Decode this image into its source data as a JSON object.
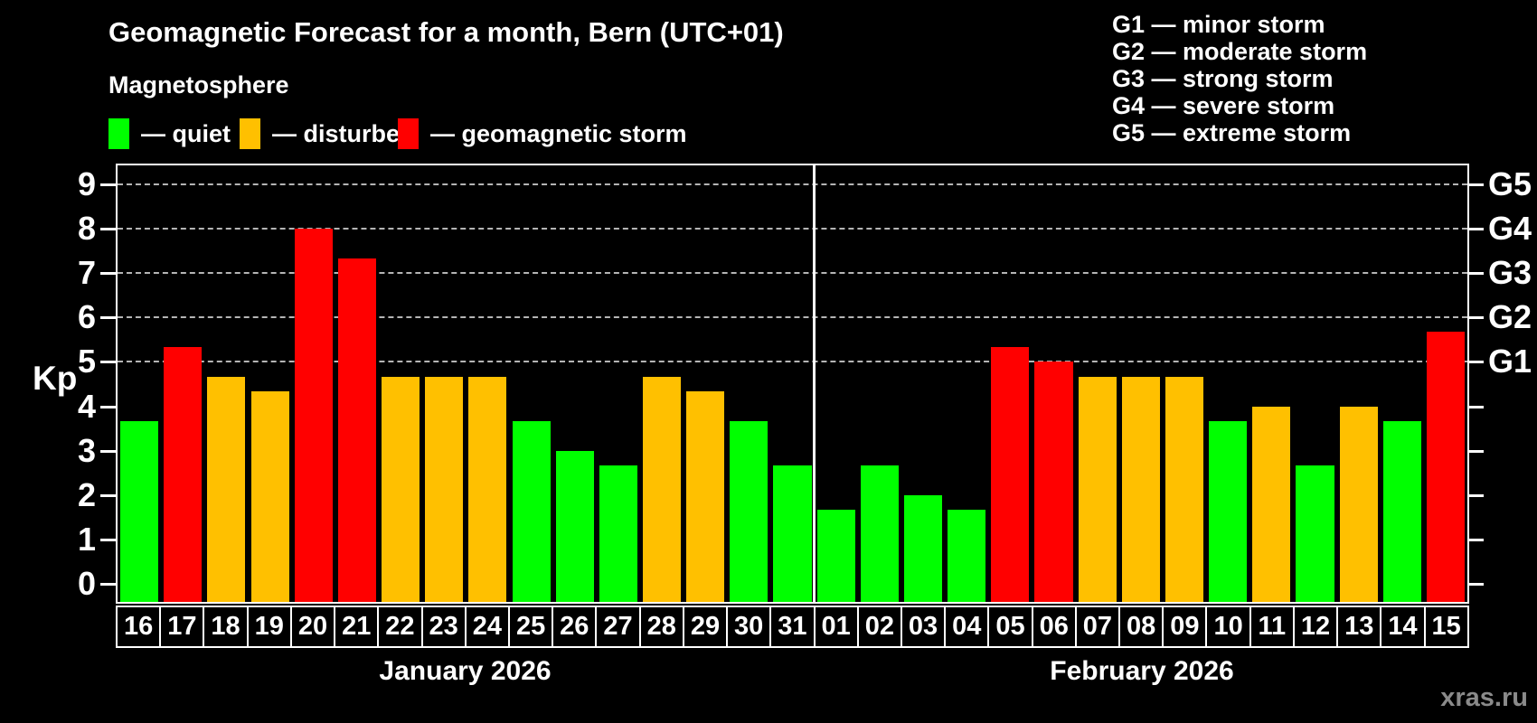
{
  "title": "Geomagnetic Forecast for a month, Bern (UTC+01)",
  "subtitle": "Magnetosphere",
  "watermark": "xras.ru",
  "colors": {
    "quiet": "#00ff00",
    "disturbed": "#ffc000",
    "storm": "#ff0000",
    "background": "#000000",
    "grid": "#b5b5b5",
    "axis": "#ffffff",
    "watermark": "#8a8a8a"
  },
  "legend": [
    {
      "key": "quiet",
      "label": "— quiet",
      "color": "#00ff00"
    },
    {
      "key": "disturbed",
      "label": "— disturbed",
      "color": "#ffc000"
    },
    {
      "key": "storm",
      "label": "— geomagnetic storm",
      "color": "#ff0000"
    }
  ],
  "g_legend": [
    "G1 — minor storm",
    "G2 — moderate storm",
    "G3 — strong storm",
    "G4 — severe storm",
    "G5 — extreme storm"
  ],
  "chart_data": {
    "type": "bar",
    "title": "Geomagnetic Forecast for a month, Bern (UTC+01)",
    "subtitle": "Magnetosphere",
    "ylabel": "Kp",
    "ylim": [
      -0.4,
      9.42
    ],
    "grid_on": true,
    "grid_levels": [
      5,
      6,
      7,
      8,
      9
    ],
    "y_ticks": [
      "0",
      "1",
      "2",
      "3",
      "4",
      "5",
      "6",
      "7",
      "8",
      "9"
    ],
    "g_ticks": [
      {
        "kp": 5,
        "label": "G1"
      },
      {
        "kp": 6,
        "label": "G2"
      },
      {
        "kp": 7,
        "label": "G3"
      },
      {
        "kp": 8,
        "label": "G4"
      },
      {
        "kp": 9,
        "label": "G5"
      }
    ],
    "months": [
      {
        "label": "January 2026",
        "days": [
          {
            "date": "16",
            "kp": 3.67,
            "level": "quiet"
          },
          {
            "date": "17",
            "kp": 5.33,
            "level": "storm"
          },
          {
            "date": "18",
            "kp": 4.67,
            "level": "disturbed"
          },
          {
            "date": "19",
            "kp": 4.33,
            "level": "disturbed"
          },
          {
            "date": "20",
            "kp": 8.0,
            "level": "storm"
          },
          {
            "date": "21",
            "kp": 7.33,
            "level": "storm"
          },
          {
            "date": "22",
            "kp": 4.67,
            "level": "disturbed"
          },
          {
            "date": "23",
            "kp": 4.67,
            "level": "disturbed"
          },
          {
            "date": "24",
            "kp": 4.67,
            "level": "disturbed"
          },
          {
            "date": "25",
            "kp": 3.67,
            "level": "quiet"
          },
          {
            "date": "26",
            "kp": 3.0,
            "level": "quiet"
          },
          {
            "date": "27",
            "kp": 2.67,
            "level": "quiet"
          },
          {
            "date": "28",
            "kp": 4.67,
            "level": "disturbed"
          },
          {
            "date": "29",
            "kp": 4.33,
            "level": "disturbed"
          },
          {
            "date": "30",
            "kp": 3.67,
            "level": "quiet"
          },
          {
            "date": "31",
            "kp": 2.67,
            "level": "quiet"
          }
        ]
      },
      {
        "label": "February 2026",
        "days": [
          {
            "date": "01",
            "kp": 1.67,
            "level": "quiet"
          },
          {
            "date": "02",
            "kp": 2.67,
            "level": "quiet"
          },
          {
            "date": "03",
            "kp": 2.0,
            "level": "quiet"
          },
          {
            "date": "04",
            "kp": 1.67,
            "level": "quiet"
          },
          {
            "date": "05",
            "kp": 5.33,
            "level": "storm"
          },
          {
            "date": "06",
            "kp": 5.0,
            "level": "storm"
          },
          {
            "date": "07",
            "kp": 4.67,
            "level": "disturbed"
          },
          {
            "date": "08",
            "kp": 4.67,
            "level": "disturbed"
          },
          {
            "date": "09",
            "kp": 4.67,
            "level": "disturbed"
          },
          {
            "date": "10",
            "kp": 3.67,
            "level": "quiet"
          },
          {
            "date": "11",
            "kp": 4.0,
            "level": "disturbed"
          },
          {
            "date": "12",
            "kp": 2.67,
            "level": "quiet"
          },
          {
            "date": "13",
            "kp": 4.0,
            "level": "disturbed"
          },
          {
            "date": "14",
            "kp": 3.67,
            "level": "quiet"
          },
          {
            "date": "15",
            "kp": 5.67,
            "level": "storm"
          }
        ]
      }
    ]
  }
}
